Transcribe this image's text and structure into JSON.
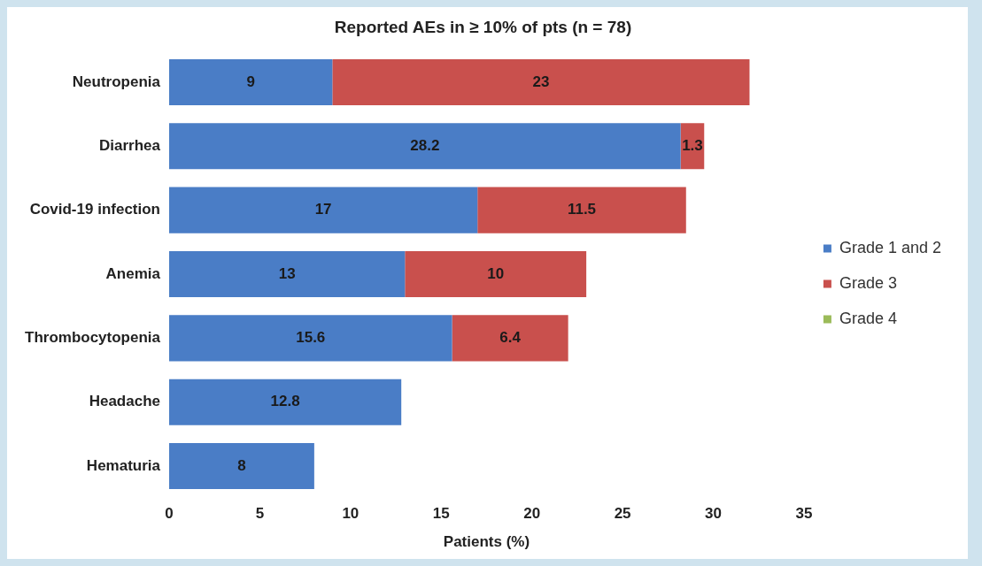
{
  "chart_data": {
    "type": "bar",
    "orientation": "horizontal",
    "stacked": true,
    "title": "Reported AEs in ≥ 10% of pts (n = 78)",
    "xlabel": "Patients (%)",
    "categories": [
      "Neutropenia",
      "Diarrhea",
      "Covid-19 infection",
      "Anemia",
      "Thrombocytopenia",
      "Headache",
      "Hematuria"
    ],
    "series": [
      {
        "name": "Grade 1 and 2",
        "color": "#4a7dc6",
        "values": [
          9,
          28.2,
          17,
          13,
          15.6,
          12.8,
          8
        ]
      },
      {
        "name": "Grade 3",
        "color": "#c9504d",
        "values": [
          23,
          1.3,
          11.5,
          10,
          6.4,
          null,
          null
        ]
      },
      {
        "name": "Grade 4",
        "color": "#9bbb59",
        "values": [
          null,
          null,
          null,
          null,
          null,
          null,
          null
        ]
      }
    ],
    "xlim": [
      0,
      35
    ],
    "xticks": [
      0,
      5,
      10,
      15,
      20,
      25,
      30,
      35
    ],
    "grid": false,
    "legend": "right",
    "data_labels": true
  }
}
